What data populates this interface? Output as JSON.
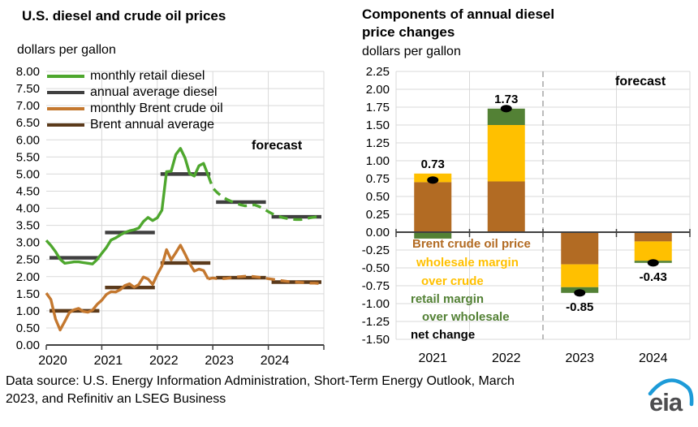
{
  "page": {
    "background": "#FFFFFF"
  },
  "colors": {
    "grid": "#D9D9D9",
    "axis": "#404040",
    "separator": "#A6A6A6",
    "monthly_diesel": "#4EA72E",
    "annual_diesel": "#3F3F3F",
    "monthly_brent": "#C4782F",
    "annual_brent": "#5B3A1B",
    "bar_brown": "#B26B23",
    "bar_yellow": "#FFC000",
    "bar_green": "#538135",
    "net_dot": "#000000",
    "eia_blue": "#1D9BD8",
    "eia_gray": "#4D4D4F"
  },
  "chart_data": [
    {
      "type": "line",
      "title": "U.S. diesel and crude oil prices",
      "ylabel": "dollars per gallon",
      "ylim": [
        0,
        8
      ],
      "ytick_step": 0.5,
      "xtick_labels": [
        "2020",
        "2021",
        "2022",
        "2023",
        "2024"
      ],
      "forecast_label": "forecast",
      "forecast_start_index": 36,
      "grid": true,
      "legend_position": "inside-top-left",
      "series": [
        {
          "name": "monthly retail diesel",
          "color": "#4EA72E",
          "style": "monthly",
          "values": [
            3.06,
            2.91,
            2.73,
            2.51,
            2.39,
            2.41,
            2.43,
            2.43,
            2.41,
            2.39,
            2.37,
            2.5,
            2.68,
            2.85,
            3.07,
            3.13,
            3.22,
            3.29,
            3.34,
            3.37,
            3.42,
            3.61,
            3.73,
            3.64,
            3.72,
            3.94,
            5.07,
            5.08,
            5.57,
            5.75,
            5.47,
            5.01,
            4.94,
            5.24,
            5.31,
            4.96,
            4.59,
            4.45,
            4.34,
            4.26,
            4.2,
            4.15,
            4.1,
            4.07,
            4.08,
            4.1,
            4.05,
            3.98,
            3.9,
            3.83,
            3.78,
            3.73,
            3.7,
            3.68,
            3.67,
            3.67,
            3.69,
            3.72,
            3.74,
            3.77
          ]
        },
        {
          "name": "annual average diesel",
          "color": "#3F3F3F",
          "style": "annual",
          "values": [
            2.55,
            3.29,
            5.0,
            4.18,
            3.75
          ]
        },
        {
          "name": "monthly Brent crude oil",
          "color": "#C4782F",
          "style": "monthly",
          "values": [
            1.52,
            1.33,
            0.76,
            0.44,
            0.69,
            0.95,
            1.03,
            1.07,
            0.98,
            0.96,
            1.02,
            1.19,
            1.31,
            1.48,
            1.56,
            1.55,
            1.62,
            1.74,
            1.79,
            1.69,
            1.77,
            1.99,
            1.93,
            1.77,
            2.06,
            2.31,
            2.79,
            2.49,
            2.7,
            2.92,
            2.66,
            2.38,
            2.16,
            2.22,
            2.18,
            1.93,
            1.96,
            1.94,
            1.94,
            1.95,
            1.97,
            1.99,
            2.0,
            2.01,
            2.01,
            2.0,
            1.98,
            1.96,
            1.94,
            1.92,
            1.9,
            1.88,
            1.86,
            1.85,
            1.84,
            1.83,
            1.82,
            1.81,
            1.81,
            1.8
          ]
        },
        {
          "name": "Brent annual average",
          "color": "#5B3A1B",
          "style": "annual",
          "values": [
            1.0,
            1.68,
            2.4,
            1.97,
            1.84
          ]
        }
      ]
    },
    {
      "type": "bar",
      "title": "Components of annual diesel price changes",
      "title_lines": [
        "Components of annual diesel",
        "price changes"
      ],
      "ylabel": "dollars per gallon",
      "ylim": [
        -1.5,
        2.25
      ],
      "ytick_step": 0.25,
      "categories": [
        "2021",
        "2022",
        "2023",
        "2024"
      ],
      "forecast_label": "forecast",
      "forecast_separator_after_category": "2022",
      "grid": true,
      "series": [
        {
          "name": "Brent crude oil price",
          "color": "#B26B23",
          "values": [
            0.7,
            0.71,
            -0.45,
            -0.13
          ]
        },
        {
          "name": "wholesale margin over crude",
          "color": "#FFC000",
          "values": [
            0.12,
            0.79,
            -0.32,
            -0.27
          ]
        },
        {
          "name": "retail margin over wholesale",
          "color": "#538135",
          "values": [
            -0.09,
            0.23,
            -0.08,
            -0.03
          ]
        }
      ],
      "net_change": {
        "name": "net change",
        "color": "#000000",
        "values": [
          0.73,
          1.73,
          -0.85,
          -0.43
        ],
        "labels": [
          "0.73",
          "1.73",
          "-0.85",
          "-0.43"
        ]
      },
      "legend_lines": [
        {
          "text": "Brent crude oil price",
          "color": "#B26B23"
        },
        {
          "text": "wholesale margin",
          "color": "#FFC000"
        },
        {
          "text": "over crude",
          "color": "#FFC000"
        },
        {
          "text": "retail margin",
          "color": "#538135"
        },
        {
          "text": "over wholesale",
          "color": "#538135"
        },
        {
          "text": "net change",
          "color": "#000000"
        }
      ]
    }
  ],
  "footer": {
    "source_lines": [
      "Data source: U.S. Energy Information Administration, Short-Term Energy Outlook, March",
      "2023, and Refinitiv an LSEG Business"
    ],
    "logo_text": "eia"
  }
}
